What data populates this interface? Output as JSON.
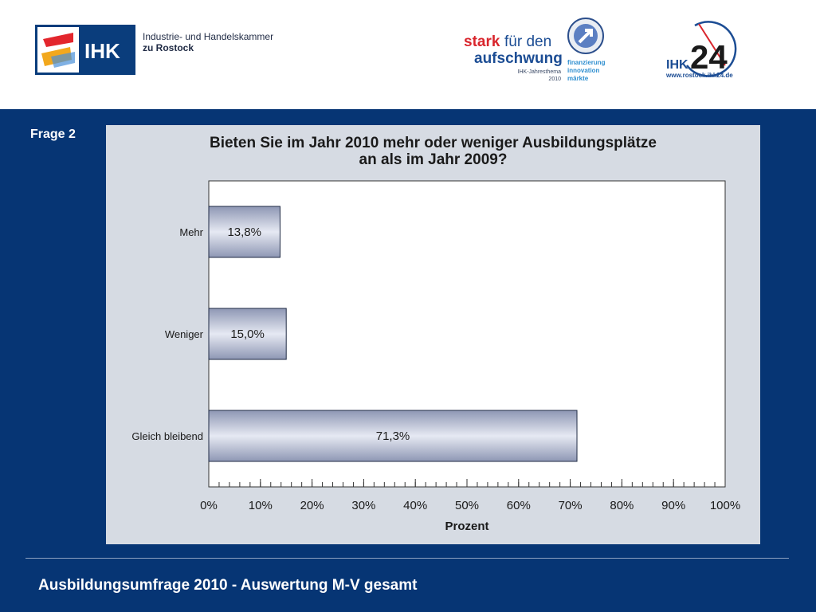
{
  "header": {
    "ihk_logo_text": "IHK",
    "ihk_line1": "Industrie- und Handelskammer",
    "ihk_line2": "zu Rostock",
    "stark_line1a": "stark",
    "stark_line1b": "für den",
    "stark_line2": "aufschwung",
    "stark_sub1": "IHK-Jahresthema",
    "stark_sub2": "2010",
    "stark_items": [
      "finanzierung",
      "innovation",
      "märkte"
    ],
    "ihk24_prefix": "IHK",
    "ihk24_number": "24",
    "ihk24_url": "www.rostock.ihk24.de"
  },
  "slide": {
    "label": "Frage 2",
    "footer": "Ausbildungsumfrage 2010 - Auswertung M-V gesamt"
  },
  "chart_data": {
    "type": "bar",
    "orientation": "horizontal",
    "title_line1": "Bieten Sie im Jahr 2010 mehr oder weniger Ausbildungsplätze",
    "title_line2": "an als im Jahr 2009?",
    "categories": [
      "Mehr",
      "Weniger",
      "Gleich bleibend"
    ],
    "values": [
      13.8,
      15.0,
      71.3
    ],
    "data_labels": [
      "13,8%",
      "15,0%",
      "71,3%"
    ],
    "xlabel": "Prozent",
    "xlim": [
      0,
      100
    ],
    "x_ticks": [
      "0%",
      "10%",
      "20%",
      "30%",
      "40%",
      "50%",
      "60%",
      "70%",
      "80%",
      "90%",
      "100%"
    ],
    "grid": false
  }
}
